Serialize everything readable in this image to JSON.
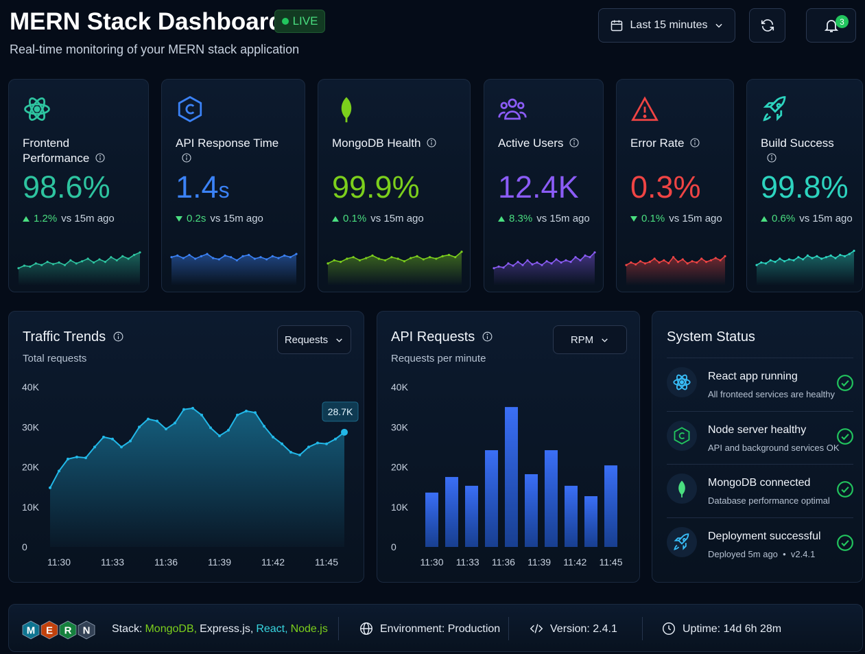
{
  "header": {
    "title": "MERN Stack Dashboard",
    "badge": "LIVE",
    "subtitle": "Real-time monitoring of your MERN stack application",
    "time_range": "Last 15 minutes",
    "notifications": "3"
  },
  "kpis": [
    {
      "title": "Frontend Performance",
      "value": "98.6%",
      "change": "1.2%",
      "trend": "up",
      "compare": "vs 15m ago",
      "color": "#2ec4a0",
      "spark": [
        20,
        28,
        25,
        35,
        30,
        40,
        33,
        38,
        30,
        45,
        35,
        42,
        50,
        38,
        48,
        40,
        55,
        45,
        58,
        50,
        62,
        70
      ]
    },
    {
      "title": "API Response Time",
      "value": "1.4",
      "unit": "s",
      "change": "0.2s",
      "trend": "down",
      "compare": "vs 15m ago",
      "color": "#3b82f6",
      "spark": [
        55,
        60,
        52,
        62,
        50,
        58,
        65,
        52,
        48,
        60,
        55,
        45,
        58,
        62,
        50,
        55,
        48,
        58,
        52,
        60,
        55,
        65
      ]
    },
    {
      "title": "MongoDB Health",
      "value": "99.9%",
      "change": "0.1%",
      "trend": "up",
      "compare": "vs 15m ago",
      "color": "#7ccf1c",
      "spark": [
        35,
        45,
        40,
        50,
        55,
        45,
        52,
        60,
        50,
        45,
        55,
        50,
        42,
        52,
        58,
        48,
        55,
        50,
        58,
        62,
        55,
        72
      ]
    },
    {
      "title": "Active Users",
      "value": "12.4K",
      "change": "8.3%",
      "trend": "up",
      "compare": "vs 15m ago",
      "color": "#8b5cf6",
      "spark": [
        20,
        25,
        22,
        35,
        28,
        40,
        30,
        45,
        32,
        38,
        30,
        42,
        35,
        48,
        38,
        45,
        40,
        55,
        45,
        60,
        55,
        70
      ]
    },
    {
      "title": "Error Rate",
      "value": "0.3%",
      "change": "0.1%",
      "trend": "down",
      "compare": "vs 15m ago",
      "color": "#ef4444",
      "spark": [
        30,
        38,
        32,
        42,
        35,
        40,
        50,
        38,
        45,
        36,
        55,
        40,
        48,
        35,
        42,
        38,
        50,
        40,
        45,
        52,
        45,
        58
      ]
    },
    {
      "title": "Build Success",
      "value": "99.8%",
      "change": "0.6%",
      "trend": "up",
      "compare": "vs 15m ago",
      "color": "#2dd4bf",
      "spark": [
        30,
        38,
        35,
        45,
        40,
        50,
        42,
        48,
        45,
        55,
        48,
        60,
        52,
        58,
        50,
        55,
        60,
        52,
        62,
        58,
        65,
        75
      ]
    }
  ],
  "traffic": {
    "title": "Traffic Trends",
    "subtitle": "Total requests",
    "selector": "Requests",
    "chart_data": {
      "type": "area",
      "color": "#22b8e8",
      "categories": [
        null,
        "11:30",
        null,
        null,
        null,
        null,
        null,
        "11:33",
        null,
        null,
        null,
        null,
        null,
        "11:36",
        null,
        null,
        null,
        null,
        null,
        "11:39",
        null,
        null,
        null,
        null,
        null,
        "11:42",
        null,
        null,
        null,
        null,
        null,
        "11:45",
        null,
        null
      ],
      "values": [
        14800,
        19000,
        22000,
        22500,
        22300,
        25000,
        27500,
        27000,
        25000,
        26500,
        30000,
        32000,
        31500,
        29500,
        31000,
        34400,
        34700,
        33000,
        29800,
        27800,
        29200,
        33000,
        34000,
        33600,
        30200,
        27500,
        25800,
        23700,
        23000,
        25000,
        26000,
        25800,
        27000,
        28700
      ],
      "callout": "28.7K",
      "ylim": [
        0,
        40000
      ],
      "yticks": [
        0,
        {
          "value": 10000,
          "label": "10K"
        },
        {
          "value": 20000,
          "label": "20K"
        },
        {
          "value": 30000,
          "label": "30K"
        },
        {
          "value": 40000,
          "label": "40K"
        }
      ]
    }
  },
  "api": {
    "title": "API Requests",
    "subtitle": "Requests per minute",
    "selector": "RPM",
    "chart_data": {
      "type": "bar",
      "color": "#2563eb",
      "categories": [
        null,
        null,
        null,
        null,
        null,
        null,
        null,
        null,
        null,
        null
      ],
      "xlabels": [
        "11:30",
        "11:33",
        "11:36",
        "11:39",
        "11:42",
        "11:45"
      ],
      "values": [
        13600,
        17500,
        15300,
        24200,
        35000,
        18200,
        24200,
        15300,
        12700,
        20400
      ],
      "ylim": [
        0,
        40000
      ],
      "yticks": [
        0,
        {
          "value": 10000,
          "label": "10K"
        },
        {
          "value": 20000,
          "label": "20K"
        },
        {
          "value": 30000,
          "label": "30K"
        },
        {
          "value": 40000,
          "label": "40K"
        }
      ]
    }
  },
  "status": {
    "title": "System Status",
    "items": [
      {
        "title": "React app running",
        "detail": "All fronteed services are healthy",
        "color": "#38bdf8"
      },
      {
        "title": "Node server healthy",
        "detail": "API and background services OK",
        "color": "#22c55e"
      },
      {
        "title": "MongoDB connected",
        "detail": "Database performance optimal",
        "color": "#4ade80"
      },
      {
        "title": "Deployment successful",
        "detail": "Deployed 5m ago  •  v2.4.1",
        "color": "#38bdf8"
      }
    ]
  },
  "footer": {
    "logo": [
      {
        "letter": "M",
        "color": "#0e7490"
      },
      {
        "letter": "E",
        "color": "#c2410c"
      },
      {
        "letter": "R",
        "color": "#15803d"
      },
      {
        "letter": "N",
        "color": "#334155"
      }
    ],
    "stack_label": "Stack:",
    "stack": [
      {
        "text": "MongoDB,",
        "color": "#7ccf1c"
      },
      {
        "text": "Express.js,",
        "color": "#e6ecf5"
      },
      {
        "text": "React,",
        "color": "#38d6e0"
      },
      {
        "text": "Node.js",
        "color": "#7ccf1c"
      }
    ],
    "environment": "Environment: Production",
    "version": "Version: 2.4.1",
    "uptime": "Uptime: 14d 6h 28m"
  }
}
